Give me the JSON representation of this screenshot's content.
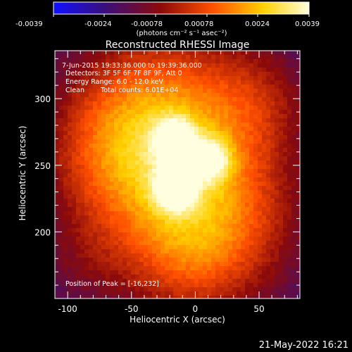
{
  "colorbar": {
    "ticks": [
      "-0.0039",
      "-0.0024",
      "-0.00078",
      "0.00078",
      "0.0024",
      "0.0039"
    ],
    "units": "(photons cm⁻² s⁻¹ asec⁻²)",
    "range": [
      -0.0039,
      0.0039
    ],
    "colormap": [
      "#1010ff",
      "#3a0f7a",
      "#8b0a0a",
      "#ff4f00",
      "#ffd000",
      "#ffffe0"
    ]
  },
  "chart_data": {
    "type": "heatmap",
    "title": "Reconstructed RHESSI Image",
    "xlabel": "Heliocentric X (arcsec)",
    "ylabel": "Heliocentric Y (arcsec)",
    "xlim": [
      -110,
      82
    ],
    "ylim": [
      150,
      336
    ],
    "xticks": [
      -100,
      -50,
      0,
      50
    ],
    "yticks": [
      200,
      250,
      300
    ],
    "annotations": [
      "7-Jun-2015 19:33:36.000 to 19:39:36.000",
      "Detectors: 3F 5F 6F 7F 8F 9F, Att 0",
      "Energy Range: 6.0 - 12.0 keV",
      "Clean",
      "Total counts: 6.01E+04"
    ],
    "peak_label": "Position of Peak = [-16,232]",
    "sources": [
      {
        "x": -16,
        "y": 232,
        "peak": 0.0039
      },
      {
        "x": -16,
        "y": 269,
        "peak": 0.0037
      },
      {
        "x": 12,
        "y": 254,
        "peak": 0.0033
      }
    ]
  },
  "footer": {
    "date": "21-May-2022 16:21"
  }
}
